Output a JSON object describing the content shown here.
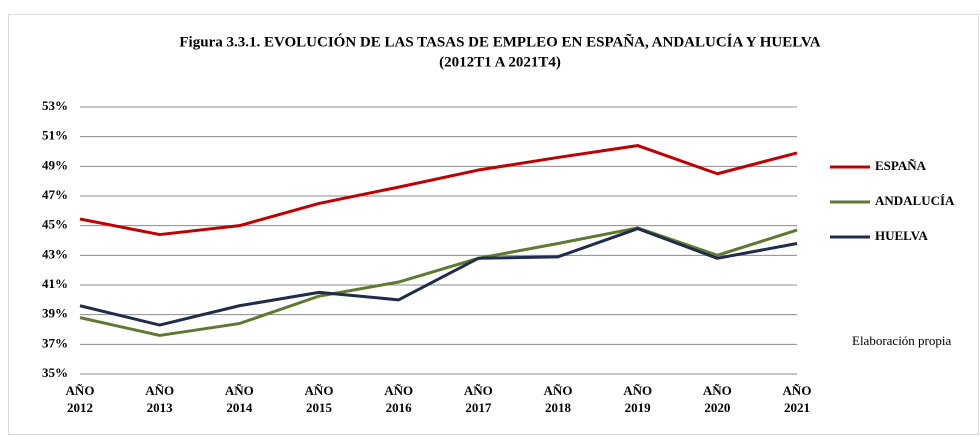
{
  "chart_data": {
    "type": "line",
    "title": "Figura 3.3.1. EVOLUCIÓN DE LAS TASAS DE EMPLEO EN ESPAÑA, ANDALUCÍA Y HUELVA",
    "subtitle": "(2012T1 A 2021T4)",
    "categories": [
      "AÑO 2012",
      "AÑO 2013",
      "AÑO 2014",
      "AÑO 2015",
      "AÑO 2016",
      "AÑO 2017",
      "AÑO 2018",
      "AÑO 2019",
      "AÑO 2020",
      "AÑO 2021"
    ],
    "series": [
      {
        "name": "ESPAÑA",
        "color": "#c00000",
        "values": [
          45.45,
          44.4,
          45.0,
          46.5,
          47.6,
          48.75,
          49.6,
          50.4,
          48.5,
          49.9
        ]
      },
      {
        "name": "ANDALUCÍA",
        "color": "#5e7a30",
        "values": [
          38.8,
          37.6,
          38.4,
          40.25,
          41.2,
          42.8,
          43.8,
          44.85,
          43.0,
          44.7
        ]
      },
      {
        "name": "HUELVA",
        "color": "#1f2d4a",
        "values": [
          39.6,
          38.3,
          39.6,
          40.5,
          40.0,
          42.8,
          42.9,
          44.8,
          42.8,
          43.8
        ]
      }
    ],
    "ylim": [
      35,
      53
    ],
    "yticks": [
      {
        "value": 35,
        "label": "35%"
      },
      {
        "value": 37,
        "label": "37%"
      },
      {
        "value": 39,
        "label": "39%"
      },
      {
        "value": 41,
        "label": "41%"
      },
      {
        "value": 43,
        "label": "43%"
      },
      {
        "value": 45,
        "label": "45%"
      },
      {
        "value": 47,
        "label": "47%"
      },
      {
        "value": 49,
        "label": "49%"
      },
      {
        "value": 51,
        "label": "51%"
      },
      {
        "value": 53,
        "label": "53%"
      }
    ],
    "grid": true,
    "legend": "right",
    "annotation": "Elaboración propia"
  }
}
